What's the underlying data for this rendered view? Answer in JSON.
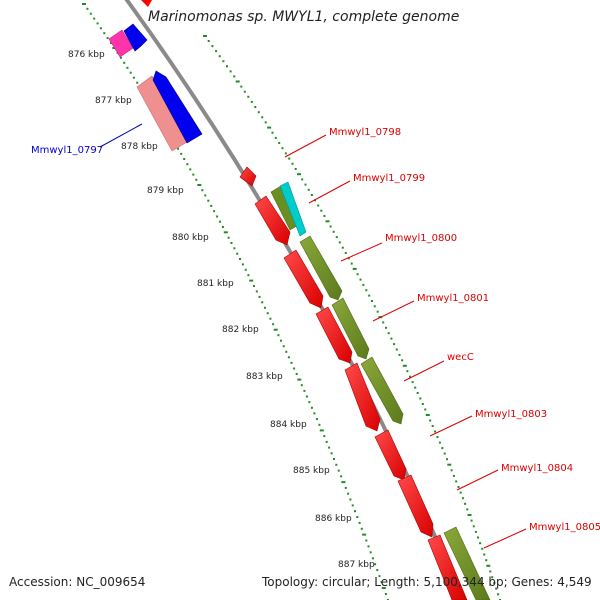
{
  "title": "Marinomonas sp. MWYL1, complete genome",
  "footer": {
    "accession": "Accession: NC_009654",
    "summary": "Topology: circular; Length: 5,100,344 bp; Genes: 4,549"
  },
  "colors": {
    "backbone": "#8a8a8a",
    "ruler": "#228b22",
    "cds_forward_track": "#ff0000",
    "cds_label": "#dd0000",
    "reverse_label": "#0000cc",
    "blue": "#0000ee",
    "pink": "#ef8f8f",
    "magenta": "#ff33aa",
    "olive": "#6b8e23",
    "cyan": "#00cccc"
  },
  "ruler": {
    "unit": "kbp",
    "ticks": [
      "876 kbp",
      "877 kbp",
      "878 kbp",
      "879 kbp",
      "880 kbp",
      "881 kbp",
      "882 kbp",
      "883 kbp",
      "884 kbp",
      "885 kbp",
      "886 kbp",
      "887 kbp"
    ]
  },
  "gene_labels": [
    {
      "text": "Mmwyl1_0797",
      "color": "#0000cc"
    },
    {
      "text": "Mmwyl1_0798",
      "color": "#dd0000"
    },
    {
      "text": "Mmwyl1_0799",
      "color": "#dd0000"
    },
    {
      "text": "Mmwyl1_0800",
      "color": "#dd0000"
    },
    {
      "text": "Mmwyl1_0801",
      "color": "#dd0000"
    },
    {
      "text": "wecC",
      "color": "#dd0000"
    },
    {
      "text": "Mmwyl1_0803",
      "color": "#dd0000"
    },
    {
      "text": "Mmwyl1_0804",
      "color": "#dd0000"
    },
    {
      "text": "Mmwyl1_0805",
      "color": "#dd0000"
    }
  ],
  "features": [
    {
      "track": "outer-reverse",
      "color": "#ff33aa",
      "direction": "reverse"
    },
    {
      "track": "outer-reverse",
      "color": "#0000ee",
      "direction": "reverse"
    },
    {
      "track": "outer-reverse",
      "color": "#ef8f8f",
      "direction": "reverse"
    },
    {
      "track": "outer-reverse",
      "color": "#0000ee",
      "direction": "reverse"
    },
    {
      "track": "inner-forward",
      "color": "#ff0000",
      "direction": "forward"
    },
    {
      "track": "inner-forward",
      "color": "#ff0000",
      "direction": "forward"
    },
    {
      "track": "inner-forward",
      "color": "#ff0000",
      "direction": "forward"
    },
    {
      "track": "inner-forward",
      "color": "#ff0000",
      "direction": "forward"
    },
    {
      "track": "inner-forward",
      "color": "#ff0000",
      "direction": "forward"
    },
    {
      "track": "inner-forward",
      "color": "#ff0000",
      "direction": "forward"
    },
    {
      "track": "inner-forward",
      "color": "#ff0000",
      "direction": "forward"
    },
    {
      "track": "inner-forward",
      "color": "#ff0000",
      "direction": "forward"
    },
    {
      "track": "outer-forward",
      "color": "#00cccc",
      "direction": "forward"
    },
    {
      "track": "outer-forward",
      "color": "#6b8e23",
      "direction": "forward"
    },
    {
      "track": "outer-forward",
      "color": "#6b8e23",
      "direction": "forward"
    },
    {
      "track": "outer-forward",
      "color": "#6b8e23",
      "direction": "forward"
    },
    {
      "track": "outer-forward",
      "color": "#6b8e23",
      "direction": "forward"
    },
    {
      "track": "outer-forward",
      "color": "#6b8e23",
      "direction": "forward"
    }
  ]
}
